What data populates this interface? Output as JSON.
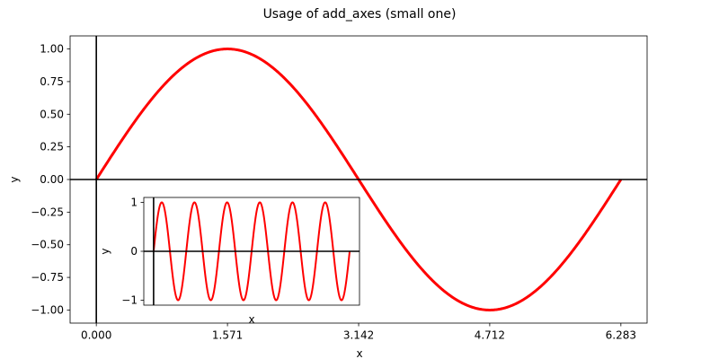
{
  "chart_data": [
    {
      "type": "line",
      "title": "Usage of add_axes (small one)",
      "xlabel": "x",
      "ylabel": "y",
      "xlim": [
        -0.314,
        6.597
      ],
      "ylim": [
        -1.1,
        1.1
      ],
      "xticks": [
        0,
        1.571,
        3.142,
        4.712,
        6.283
      ],
      "xtick_labels": [
        "0.000",
        "1.571",
        "3.142",
        "4.712",
        "6.283"
      ],
      "yticks": [
        1.0,
        0.75,
        0.5,
        0.25,
        0.0,
        -0.25,
        -0.5,
        -0.75,
        -1.0
      ],
      "ytick_labels": [
        "1.00",
        "0.75",
        "0.50",
        "0.25",
        "0.00",
        "−0.25",
        "−0.50",
        "−0.75",
        "−1.00"
      ],
      "reference_lines": {
        "x": 0,
        "y": 0
      },
      "series": [
        {
          "function": "sin(x)",
          "x_range": [
            0,
            6.283
          ],
          "color": "#ff0000"
        }
      ]
    },
    {
      "type": "line",
      "title": "",
      "xlabel": "x",
      "ylabel": "y",
      "xlim": [
        -0.157,
        3.299
      ],
      "ylim": [
        -1.1,
        1.1
      ],
      "xticks": [],
      "yticks": [
        1,
        0,
        -1
      ],
      "ytick_labels": [
        "1",
        "0",
        "−1"
      ],
      "reference_lines": {
        "x": 0,
        "y": 0
      },
      "series": [
        {
          "function": "sin(12x)",
          "x_range": [
            0,
            3.142
          ],
          "color": "#ff0000"
        }
      ]
    }
  ]
}
